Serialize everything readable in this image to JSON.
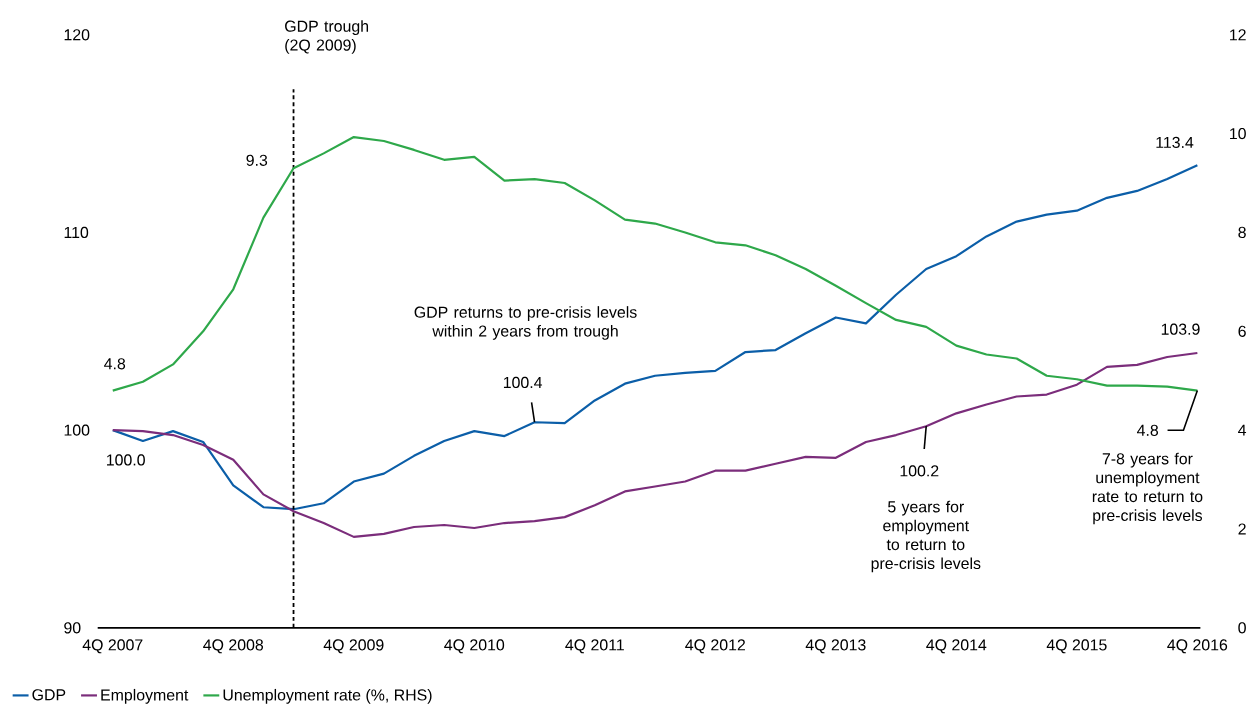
{
  "chart_data": {
    "type": "line",
    "categories": [
      "4Q 2007",
      null,
      null,
      null,
      "4Q 2008",
      null,
      null,
      null,
      "4Q 2009",
      null,
      null,
      null,
      "4Q 2010",
      null,
      null,
      null,
      "4Q 2011",
      null,
      null,
      null,
      "4Q 2012",
      null,
      null,
      null,
      "4Q 2013",
      null,
      null,
      null,
      "4Q 2014",
      null,
      null,
      null,
      "4Q 2015",
      null,
      null,
      null,
      "4Q 2016"
    ],
    "ylim": [
      90,
      120
    ],
    "yticks": [
      90,
      100,
      110,
      120
    ],
    "y2lim": [
      0,
      12
    ],
    "y2ticks": [
      0,
      2,
      4,
      6,
      8,
      10,
      12
    ],
    "series": [
      {
        "name": "GDP",
        "color": "#0b5ea8",
        "values": [
          100.0,
          99.45,
          99.95,
          99.4,
          97.2,
          96.1,
          96.0,
          96.3,
          97.4,
          97.8,
          98.7,
          99.45,
          99.95,
          99.7,
          100.4,
          100.35,
          101.5,
          102.35,
          102.75,
          102.9,
          103.0,
          103.95,
          104.05,
          104.9,
          105.7,
          105.4,
          106.85,
          108.15,
          108.8,
          109.8,
          110.55,
          110.9,
          111.1,
          111.75,
          112.1,
          112.7,
          113.4
        ],
        "value_labels": [
          "100.0",
          null,
          null,
          null,
          null,
          null,
          null,
          null,
          null,
          null,
          null,
          null,
          null,
          null,
          "100.4",
          null,
          null,
          null,
          null,
          null,
          null,
          null,
          null,
          null,
          null,
          null,
          null,
          null,
          null,
          null,
          null,
          null,
          null,
          null,
          null,
          null,
          "113.4"
        ]
      },
      {
        "name": "Employment",
        "color": "#7b2d7b",
        "values": [
          100.0,
          99.95,
          99.75,
          99.25,
          98.5,
          96.75,
          95.9,
          95.3,
          94.6,
          94.75,
          95.1,
          95.2,
          95.05,
          95.3,
          95.4,
          95.6,
          96.2,
          96.9,
          97.15,
          97.4,
          97.95,
          97.95,
          98.3,
          98.65,
          98.6,
          99.4,
          99.75,
          100.2,
          100.85,
          101.3,
          101.7,
          101.8,
          102.3,
          103.2,
          103.3,
          103.7,
          103.9
        ],
        "value_labels": [
          null,
          null,
          null,
          null,
          null,
          null,
          null,
          null,
          null,
          null,
          null,
          null,
          null,
          null,
          null,
          null,
          null,
          null,
          null,
          null,
          null,
          null,
          null,
          null,
          null,
          null,
          null,
          "100.2",
          null,
          null,
          null,
          null,
          null,
          null,
          null,
          null,
          "103.9"
        ]
      },
      {
        "name": "Unemployment rate (%, RHS)",
        "color": "#2ea84a",
        "axis": "y2",
        "values": [
          4.8,
          4.98,
          5.33,
          6.0,
          6.85,
          8.3,
          9.3,
          9.6,
          9.93,
          9.85,
          9.67,
          9.47,
          9.53,
          9.05,
          9.08,
          9.0,
          8.65,
          8.26,
          8.18,
          8.0,
          7.8,
          7.74,
          7.54,
          7.26,
          6.92,
          6.57,
          6.23,
          6.09,
          5.71,
          5.53,
          5.45,
          5.1,
          5.03,
          4.9,
          4.9,
          4.88,
          4.8
        ],
        "value_labels": [
          "4.8",
          null,
          null,
          null,
          null,
          null,
          "9.3",
          null,
          null,
          null,
          null,
          null,
          null,
          null,
          null,
          null,
          null,
          null,
          null,
          null,
          null,
          null,
          null,
          null,
          null,
          null,
          null,
          null,
          null,
          null,
          null,
          null,
          null,
          null,
          null,
          null,
          "4.8"
        ]
      }
    ],
    "annotations": [
      "GDP trough (2Q 2009)",
      "GDP returns to pre-crisis levels within 2 years from trough",
      "5 years for employment to return to pre-crisis levels",
      "7-8 years for unemployment rate to return to pre-crisis levels"
    ],
    "legend": "bottom",
    "marker": "none",
    "line_style": "solid"
  }
}
